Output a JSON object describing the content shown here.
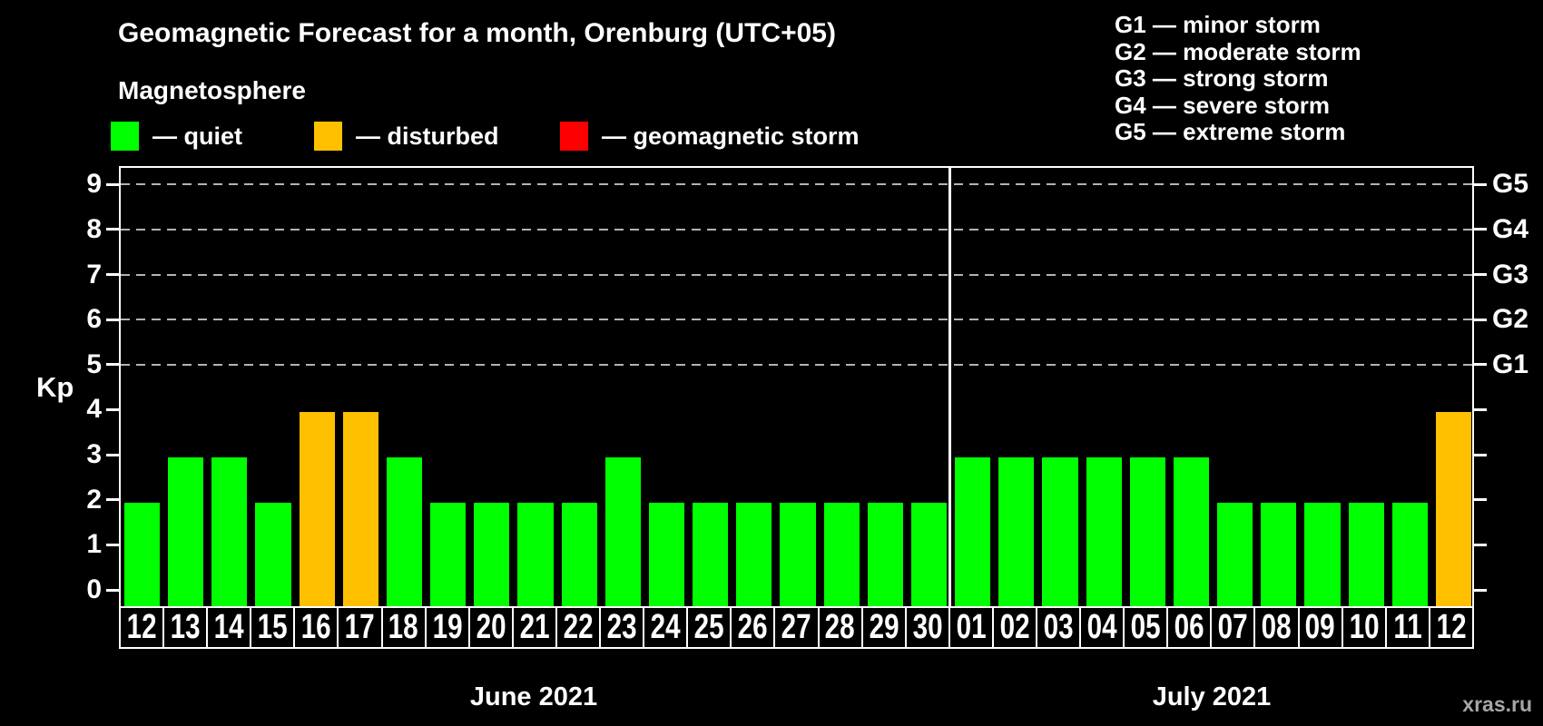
{
  "header": {
    "title": "Geomagnetic Forecast for a month, Orenburg (UTC+05)",
    "subtitle": "Magnetosphere"
  },
  "legend": {
    "items": [
      {
        "key": "quiet",
        "label": "— quiet"
      },
      {
        "key": "disturbed",
        "label": "— disturbed"
      },
      {
        "key": "storm",
        "label": "— geomagnetic storm"
      }
    ]
  },
  "g_legend": {
    "items": [
      "G1 — minor storm",
      "G2 — moderate storm",
      "G3 — strong storm",
      "G4 — severe storm",
      "G5 — extreme storm"
    ]
  },
  "colors": {
    "quiet": "#00ff00",
    "disturbed": "#ffc000",
    "storm": "#ff0000",
    "background": "#000000",
    "text": "#ffffff",
    "grid": "#b3b3b3",
    "watermark": "#a6a6a6"
  },
  "axes": {
    "y_title": "Kp",
    "y_ticks": [
      0,
      1,
      2,
      3,
      4,
      5,
      6,
      7,
      8,
      9
    ],
    "grid_values": [
      5,
      6,
      7,
      8,
      9
    ],
    "right_labels": [
      {
        "label": "G1",
        "value": 5
      },
      {
        "label": "G2",
        "value": 6
      },
      {
        "label": "G3",
        "value": 7
      },
      {
        "label": "G4",
        "value": 8
      },
      {
        "label": "G5",
        "value": 9
      }
    ]
  },
  "months": [
    {
      "label": "June 2021",
      "days": 19
    },
    {
      "label": "July 2021",
      "days": 12
    }
  ],
  "watermark": "xras.ru",
  "chart_data": {
    "type": "bar",
    "title": "Geomagnetic Forecast for a month, Orenburg (UTC+05)",
    "ylabel": "Kp",
    "ylim": [
      0,
      9.4
    ],
    "grid": "dashed horizontal at Kp 5-9, right axis labels G1-G5",
    "categories": [
      "12",
      "13",
      "14",
      "15",
      "16",
      "17",
      "18",
      "19",
      "20",
      "21",
      "22",
      "23",
      "24",
      "25",
      "26",
      "27",
      "28",
      "29",
      "30",
      "01",
      "02",
      "03",
      "04",
      "05",
      "06",
      "07",
      "08",
      "09",
      "10",
      "11",
      "12"
    ],
    "values": [
      2,
      3,
      3,
      2,
      4,
      4,
      3,
      2,
      2,
      2,
      2,
      3,
      2,
      2,
      2,
      2,
      2,
      2,
      2,
      3,
      3,
      3,
      3,
      3,
      3,
      2,
      2,
      2,
      2,
      2,
      4
    ],
    "bars": [
      {
        "day": "12",
        "month": "June 2021",
        "kp": 2,
        "state": "quiet"
      },
      {
        "day": "13",
        "month": "June 2021",
        "kp": 3,
        "state": "quiet"
      },
      {
        "day": "14",
        "month": "June 2021",
        "kp": 3,
        "state": "quiet"
      },
      {
        "day": "15",
        "month": "June 2021",
        "kp": 2,
        "state": "quiet"
      },
      {
        "day": "16",
        "month": "June 2021",
        "kp": 4,
        "state": "disturbed"
      },
      {
        "day": "17",
        "month": "June 2021",
        "kp": 4,
        "state": "disturbed"
      },
      {
        "day": "18",
        "month": "June 2021",
        "kp": 3,
        "state": "quiet"
      },
      {
        "day": "19",
        "month": "June 2021",
        "kp": 2,
        "state": "quiet"
      },
      {
        "day": "20",
        "month": "June 2021",
        "kp": 2,
        "state": "quiet"
      },
      {
        "day": "21",
        "month": "June 2021",
        "kp": 2,
        "state": "quiet"
      },
      {
        "day": "22",
        "month": "June 2021",
        "kp": 2,
        "state": "quiet"
      },
      {
        "day": "23",
        "month": "June 2021",
        "kp": 3,
        "state": "quiet"
      },
      {
        "day": "24",
        "month": "June 2021",
        "kp": 2,
        "state": "quiet"
      },
      {
        "day": "25",
        "month": "June 2021",
        "kp": 2,
        "state": "quiet"
      },
      {
        "day": "26",
        "month": "June 2021",
        "kp": 2,
        "state": "quiet"
      },
      {
        "day": "27",
        "month": "June 2021",
        "kp": 2,
        "state": "quiet"
      },
      {
        "day": "28",
        "month": "June 2021",
        "kp": 2,
        "state": "quiet"
      },
      {
        "day": "29",
        "month": "June 2021",
        "kp": 2,
        "state": "quiet"
      },
      {
        "day": "30",
        "month": "June 2021",
        "kp": 2,
        "state": "quiet"
      },
      {
        "day": "01",
        "month": "July 2021",
        "kp": 3,
        "state": "quiet"
      },
      {
        "day": "02",
        "month": "July 2021",
        "kp": 3,
        "state": "quiet"
      },
      {
        "day": "03",
        "month": "July 2021",
        "kp": 3,
        "state": "quiet"
      },
      {
        "day": "04",
        "month": "July 2021",
        "kp": 3,
        "state": "quiet"
      },
      {
        "day": "05",
        "month": "July 2021",
        "kp": 3,
        "state": "quiet"
      },
      {
        "day": "06",
        "month": "July 2021",
        "kp": 3,
        "state": "quiet"
      },
      {
        "day": "07",
        "month": "July 2021",
        "kp": 2,
        "state": "quiet"
      },
      {
        "day": "08",
        "month": "July 2021",
        "kp": 2,
        "state": "quiet"
      },
      {
        "day": "09",
        "month": "July 2021",
        "kp": 2,
        "state": "quiet"
      },
      {
        "day": "10",
        "month": "July 2021",
        "kp": 2,
        "state": "quiet"
      },
      {
        "day": "11",
        "month": "July 2021",
        "kp": 2,
        "state": "quiet"
      },
      {
        "day": "12",
        "month": "July 2021",
        "kp": 4,
        "state": "disturbed"
      }
    ]
  }
}
